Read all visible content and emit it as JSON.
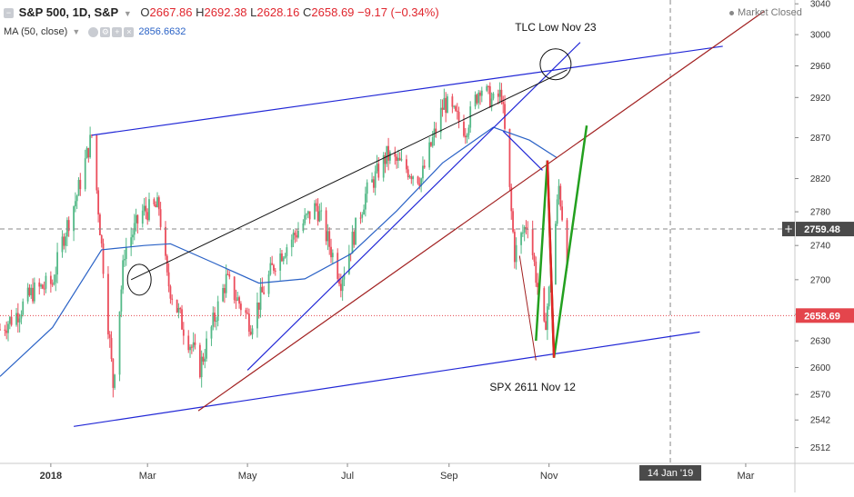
{
  "legend": {
    "symbol": "S&P 500, 1D, S&P",
    "open_label": "O",
    "open": "2667.86",
    "high_label": "H",
    "high": "2692.38",
    "low_label": "L",
    "low": "2628.16",
    "close_label": "C",
    "close": "2658.69",
    "change": "−9.17 (−0.34%)",
    "ma_label": "MA (50, close)",
    "ma_value": "2856.6632"
  },
  "status": "Market Closed",
  "colors": {
    "up": "#53b987",
    "down": "#eb4d5c",
    "ma": "#2a62c6",
    "trend_blue": "#2127d6",
    "trend_red": "#a11f1f",
    "proj_green": "#23a01f",
    "proj_red": "#e12424",
    "price_tag": "#e4454c"
  },
  "chart_data": {
    "type": "candlestick",
    "title": "S&P 500, 1D, S&P",
    "x_range": [
      "2017-12-01",
      "2019-03-31"
    ],
    "y_range": [
      2495,
      3045
    ],
    "y_scale": "log",
    "y_ticks": [
      2512,
      2542,
      2570,
      2600,
      2630,
      2660,
      2700,
      2740,
      2780,
      2820,
      2870,
      2920,
      2960,
      3000,
      3040
    ],
    "x_ticks": [
      {
        "date": "2018-01-01",
        "label": "2018"
      },
      {
        "date": "2018-03-01",
        "label": "Mar"
      },
      {
        "date": "2018-05-01",
        "label": "May"
      },
      {
        "date": "2018-07-01",
        "label": "Jul"
      },
      {
        "date": "2018-09-01",
        "label": "Sep"
      },
      {
        "date": "2018-11-01",
        "label": "Nov"
      },
      {
        "date": "2019-03-01",
        "label": "Mar"
      }
    ],
    "series": [
      {
        "name": "S&P 500",
        "x": [
          "2017-12-01",
          "2017-12-11",
          "2017-12-21",
          "2018-01-02",
          "2018-01-09",
          "2018-01-17",
          "2018-01-26",
          "2018-02-05",
          "2018-02-08",
          "2018-02-15",
          "2018-02-26",
          "2018-03-08",
          "2018-03-13",
          "2018-03-22",
          "2018-04-02",
          "2018-04-18",
          "2018-05-03",
          "2018-05-18",
          "2018-06-12",
          "2018-06-27",
          "2018-07-12",
          "2018-07-25",
          "2018-08-15",
          "2018-08-29",
          "2018-09-11",
          "2018-09-20",
          "2018-09-28",
          "2018-10-03",
          "2018-10-11",
          "2018-10-19",
          "2018-10-29",
          "2018-11-02",
          "2018-11-07",
          "2018-11-12"
        ],
        "values": [
          2643,
          2660,
          2686,
          2696,
          2752,
          2800,
          2873,
          2650,
          2581,
          2734,
          2780,
          2786,
          2700,
          2650,
          2600,
          2700,
          2650,
          2722,
          2787,
          2700,
          2800,
          2848,
          2820,
          2914,
          2880,
          2935,
          2914,
          2925,
          2730,
          2770,
          2640,
          2700,
          2810,
          2726
        ]
      },
      {
        "name": "MA (50, close)",
        "x": [
          "2017-12-01",
          "2018-01-02",
          "2018-02-01",
          "2018-02-27",
          "2018-03-15",
          "2018-04-10",
          "2018-05-08",
          "2018-06-05",
          "2018-07-03",
          "2018-07-31",
          "2018-08-28",
          "2018-09-28",
          "2018-10-20",
          "2018-11-06"
        ],
        "values": [
          2590,
          2645,
          2735,
          2740,
          2742,
          2720,
          2696,
          2701,
          2730,
          2781,
          2839,
          2883,
          2867,
          2845
        ]
      }
    ],
    "last_price_label": "2658.69",
    "crosshair_price_label": "2759.48",
    "crosshair_date_label": "14 Jan '19",
    "annotations": [
      {
        "text": "TLC Low Nov 23",
        "x": "2018-11-05",
        "y": 3005
      },
      {
        "text": "SPX 2611 Nov 12",
        "x": "2018-10-22",
        "y": 2574
      }
    ]
  }
}
